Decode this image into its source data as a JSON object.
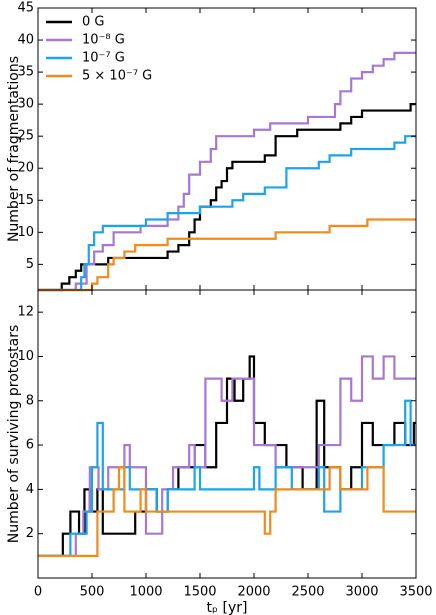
{
  "chart_data": [
    {
      "type": "line",
      "step": true,
      "ylabel": "Number of fragmentations",
      "xlim": [
        0,
        3500
      ],
      "xticks": [
        0,
        500,
        1000,
        1500,
        2000,
        2500,
        3000,
        3500
      ],
      "ylim": [
        1,
        45
      ],
      "yticks": [
        5,
        10,
        15,
        20,
        25,
        30,
        35,
        40,
        45
      ],
      "legend": "upper left",
      "series": [
        {
          "name": "0 G",
          "color": "#000000",
          "x": [
            0,
            220,
            290,
            350,
            400,
            650,
            1200,
            1300,
            1400,
            1450,
            1500,
            1600,
            1650,
            1700,
            1750,
            1800,
            2100,
            2200,
            2400,
            2800,
            2900,
            3000,
            3450
          ],
          "values": [
            1,
            2,
            3,
            4,
            5,
            6,
            7,
            8,
            10,
            12,
            14,
            15,
            17,
            18,
            20,
            21,
            22,
            25,
            26,
            27,
            28,
            29,
            30
          ]
        },
        {
          "name": "10⁻⁸ G",
          "color": "#a678d4",
          "x": [
            0,
            350,
            450,
            520,
            600,
            700,
            950,
            1200,
            1300,
            1350,
            1400,
            1500,
            1600,
            1650,
            2000,
            2150,
            2500,
            2750,
            2800,
            2900,
            3000,
            3100,
            3200,
            3300
          ],
          "values": [
            1,
            2,
            5,
            7,
            8,
            10,
            11,
            12,
            14,
            16,
            19,
            21,
            23,
            25,
            26,
            27,
            28,
            30,
            32,
            34,
            35,
            36,
            37,
            38
          ]
        },
        {
          "name": "10⁻⁷ G",
          "color": "#1ca3ec",
          "x": [
            0,
            400,
            430,
            470,
            520,
            600,
            1000,
            1200,
            1500,
            1800,
            1900,
            2100,
            2300,
            2600,
            2700,
            2900,
            3300,
            3400
          ],
          "values": [
            1,
            3,
            5,
            8,
            10,
            11,
            12,
            13,
            14,
            15,
            16,
            17,
            20,
            21,
            22,
            23,
            24,
            25
          ]
        },
        {
          "name": "5 × 10⁻⁷ G",
          "color": "#f28a1c",
          "x": [
            0,
            500,
            550,
            650,
            700,
            800,
            900,
            1200,
            2200,
            2700,
            3050
          ],
          "values": [
            1,
            2,
            3,
            5,
            6,
            7,
            8,
            9,
            10,
            11,
            12
          ]
        }
      ]
    },
    {
      "type": "line",
      "step": true,
      "ylabel": "Number of surviving protostars",
      "xlabel": "tₚ [yr]",
      "xlim": [
        0,
        3500
      ],
      "xticks": [
        0,
        500,
        1000,
        1500,
        2000,
        2500,
        3000,
        3500
      ],
      "ylim": [
        0,
        13
      ],
      "yticks": [
        2,
        4,
        6,
        8,
        10,
        12
      ],
      "series": [
        {
          "color": "#000000",
          "x": [
            0,
            230,
            300,
            380,
            430,
            480,
            550,
            600,
            900,
            1000,
            1100,
            1200,
            1300,
            1450,
            1550,
            1650,
            1750,
            1820,
            1900,
            1960,
            2000,
            2100,
            2300,
            2450,
            2580,
            2650,
            2800,
            2900,
            3000,
            3100,
            3300,
            3400,
            3480
          ],
          "values": [
            1,
            2,
            3,
            2,
            4,
            3,
            4,
            2,
            3,
            4,
            3,
            4,
            5,
            6,
            5,
            7,
            9,
            8,
            9,
            10,
            7,
            6,
            5,
            4,
            8,
            5,
            4,
            5,
            7,
            6,
            7,
            6,
            7
          ]
        },
        {
          "color": "#a678d4",
          "x": [
            0,
            350,
            420,
            480,
            560,
            650,
            800,
            850,
            1000,
            1150,
            1250,
            1400,
            1450,
            1550,
            1700,
            1800,
            2000,
            2200,
            2600,
            2800,
            2900,
            3000,
            3100,
            3200,
            3300
          ],
          "values": [
            1,
            2,
            3,
            5,
            4,
            5,
            6,
            5,
            2,
            4,
            5,
            6,
            5,
            9,
            8,
            9,
            6,
            5,
            6,
            9,
            8,
            10,
            9,
            10,
            9
          ]
        },
        {
          "color": "#1ca3ec",
          "x": [
            0,
            300,
            450,
            500,
            550,
            600,
            800,
            850,
            1100,
            1200,
            1450,
            1500,
            2000,
            2050,
            2200,
            2350,
            2600,
            2650,
            2800,
            3000,
            3200,
            3400,
            3450
          ],
          "values": [
            1,
            2,
            3,
            5,
            7,
            4,
            5,
            4,
            3,
            4,
            5,
            4,
            5,
            4,
            5,
            4,
            5,
            3,
            4,
            5,
            6,
            8,
            6
          ]
        },
        {
          "color": "#f28a1c",
          "x": [
            0,
            550,
            700,
            750,
            800,
            950,
            1000,
            2100,
            2150,
            2200,
            2700,
            2800,
            3050,
            3200
          ],
          "values": [
            1,
            3,
            4,
            5,
            3,
            4,
            3,
            2,
            3,
            4,
            5,
            4,
            5,
            3
          ]
        }
      ]
    }
  ]
}
